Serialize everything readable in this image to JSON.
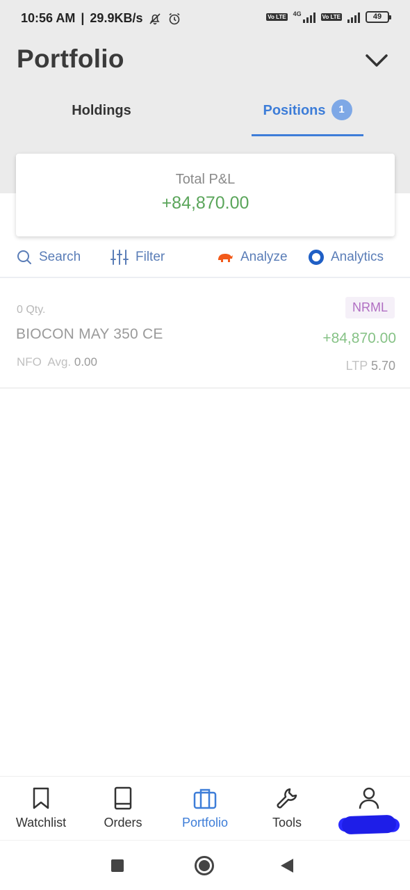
{
  "status_bar": {
    "time": "10:56 AM",
    "network_speed": "29.9KB/s",
    "network_type": "4G",
    "volte_label": "Vo LTE",
    "battery": "49"
  },
  "header": {
    "title": "Portfolio"
  },
  "tabs": [
    {
      "label": "Holdings",
      "active": false
    },
    {
      "label": "Positions",
      "active": true,
      "badge": "1"
    }
  ],
  "summary": {
    "label": "Total P&L",
    "value": "+84,870.00"
  },
  "toolbar": {
    "search": "Search",
    "filter": "Filter",
    "analyze": "Analyze",
    "analytics": "Analytics"
  },
  "positions": [
    {
      "qty": "0 Qty.",
      "symbol": "BIOCON MAY 350 CE",
      "exchange": "NFO",
      "avg_label": "Avg.",
      "avg_value": "0.00",
      "product": "NRML",
      "pnl": "+84,870.00",
      "ltp_label": "LTP",
      "ltp_value": "5.70"
    }
  ],
  "bottom_nav": {
    "watchlist": "Watchlist",
    "orders": "Orders",
    "portfolio": "Portfolio",
    "tools": "Tools"
  },
  "colors": {
    "accent": "#3d7dd8",
    "profit": "#5aa55a",
    "product_tag": "#b06ec2",
    "header_bg": "#ebebeb"
  }
}
